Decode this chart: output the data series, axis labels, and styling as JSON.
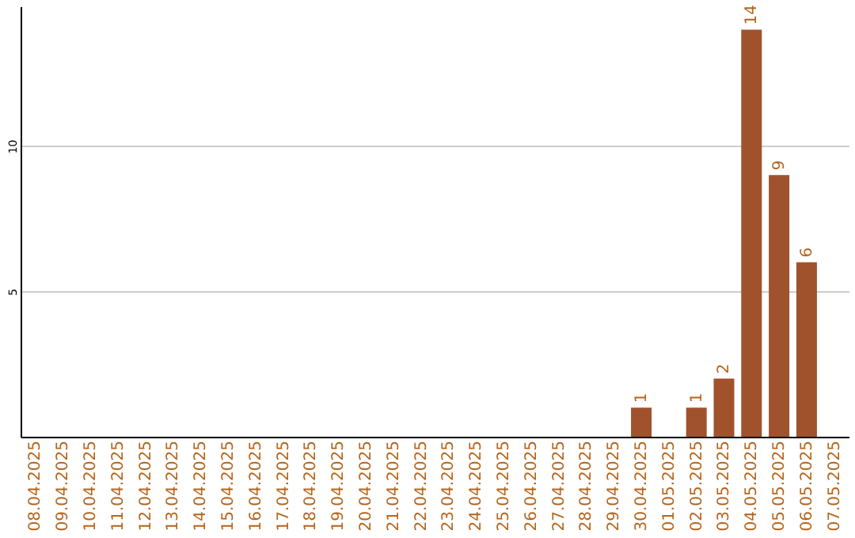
{
  "chart_data": {
    "type": "bar",
    "categories": [
      "08.04.2025",
      "09.04.2025",
      "10.04.2025",
      "11.04.2025",
      "12.04.2025",
      "13.04.2025",
      "14.04.2025",
      "15.04.2025",
      "16.04.2025",
      "17.04.2025",
      "18.04.2025",
      "19.04.2025",
      "20.04.2025",
      "21.04.2025",
      "22.04.2025",
      "23.04.2025",
      "24.04.2025",
      "25.04.2025",
      "26.04.2025",
      "27.04.2025",
      "28.04.2025",
      "29.04.2025",
      "30.04.2025",
      "01.05.2025",
      "02.05.2025",
      "03.05.2025",
      "04.05.2025",
      "05.05.2025",
      "06.05.2025",
      "07.05.2025"
    ],
    "values": [
      0,
      0,
      0,
      0,
      0,
      0,
      0,
      0,
      0,
      0,
      0,
      0,
      0,
      0,
      0,
      0,
      0,
      0,
      0,
      0,
      0,
      0,
      1,
      0,
      1,
      2,
      14,
      9,
      6,
      0
    ],
    "value_labels": [
      null,
      null,
      null,
      null,
      null,
      null,
      null,
      null,
      null,
      null,
      null,
      null,
      null,
      null,
      null,
      null,
      null,
      null,
      null,
      null,
      null,
      null,
      "1",
      null,
      "1",
      "2",
      "14",
      "9",
      "6",
      null
    ],
    "color": "#a0522d",
    "ylim": [
      0,
      14.8
    ],
    "yticks": [
      5,
      10
    ],
    "grid": "y"
  }
}
